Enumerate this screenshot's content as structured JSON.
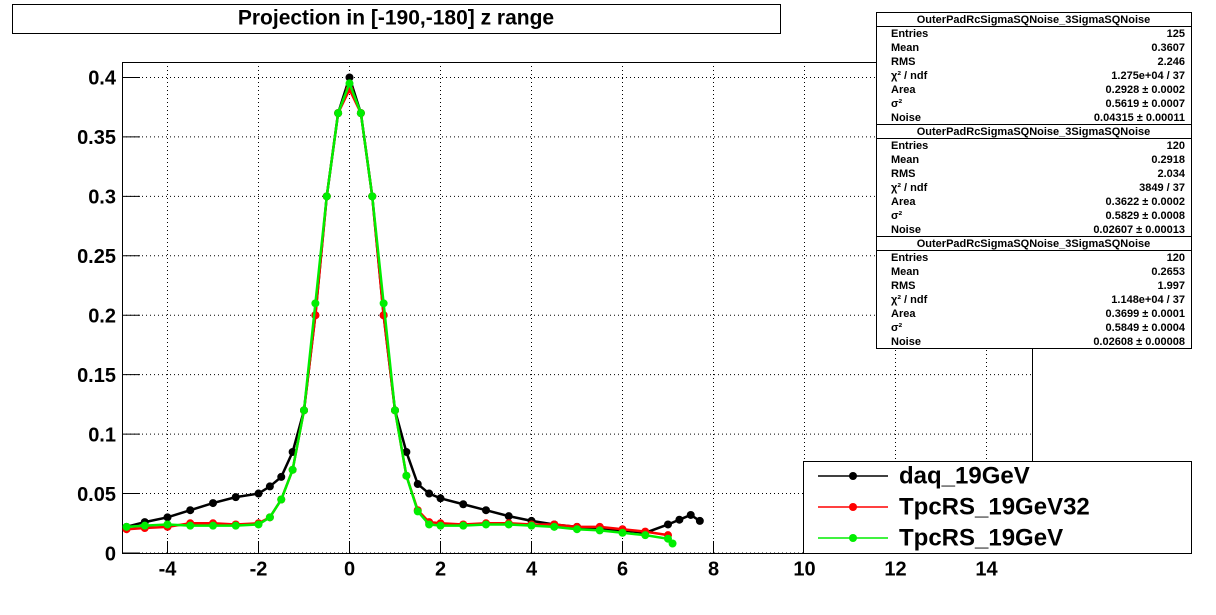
{
  "chart_data": {
    "type": "scatter",
    "title": "Projection in [-190,-180] z range",
    "xlim": [
      -5,
      15
    ],
    "ylim": [
      0,
      0.413
    ],
    "xticks": [
      -4,
      -2,
      0,
      2,
      4,
      6,
      8,
      10,
      12,
      14
    ],
    "yticks": [
      0,
      0.05,
      0.1,
      0.15,
      0.2,
      0.25,
      0.3,
      0.35,
      0.4
    ],
    "grid": true,
    "legend": "bottom-right",
    "series": [
      {
        "name": "daq_19GeV",
        "color": "#000000",
        "x": [
          -4.9,
          -4.5,
          -4,
          -3.5,
          -3,
          -2.5,
          -2,
          -1.75,
          -1.5,
          -1.25,
          -1,
          -0.75,
          -0.5,
          -0.25,
          0,
          0.25,
          0.5,
          0.75,
          1,
          1.25,
          1.5,
          1.75,
          2,
          2.5,
          3,
          3.5,
          4,
          4.5,
          5,
          5.5,
          6,
          6.5,
          7,
          7.25,
          7.5,
          7.7
        ],
        "values": [
          0.022,
          0.026,
          0.03,
          0.036,
          0.042,
          0.047,
          0.05,
          0.056,
          0.064,
          0.085,
          0.12,
          0.2,
          0.3,
          0.37,
          0.4,
          0.37,
          0.3,
          0.2,
          0.12,
          0.085,
          0.058,
          0.05,
          0.046,
          0.041,
          0.036,
          0.031,
          0.027,
          0.024,
          0.022,
          0.02,
          0.019,
          0.017,
          0.024,
          0.028,
          0.032,
          0.027
        ]
      },
      {
        "name": "TpcRS_19GeV32",
        "color": "#ff0000",
        "x": [
          -4.9,
          -4.5,
          -4,
          -3.5,
          -3,
          -2.5,
          -2,
          -1.75,
          -1.5,
          -1.25,
          -1,
          -0.75,
          -0.5,
          -0.25,
          0,
          0.25,
          0.5,
          0.75,
          1,
          1.25,
          1.5,
          1.75,
          2,
          2.5,
          3,
          3.5,
          4,
          4.5,
          5,
          5.5,
          6,
          6.5,
          7
        ],
        "values": [
          0.02,
          0.021,
          0.022,
          0.025,
          0.025,
          0.024,
          0.025,
          0.03,
          0.045,
          0.07,
          0.12,
          0.2,
          0.3,
          0.37,
          0.39,
          0.37,
          0.3,
          0.2,
          0.12,
          0.065,
          0.036,
          0.026,
          0.025,
          0.024,
          0.025,
          0.025,
          0.024,
          0.024,
          0.022,
          0.022,
          0.02,
          0.018,
          0.015
        ]
      },
      {
        "name": "TpcRS_19GeV",
        "color": "#00ee00",
        "x": [
          -4.9,
          -4.5,
          -4,
          -3.5,
          -3,
          -2.5,
          -2,
          -1.75,
          -1.5,
          -1.25,
          -1,
          -0.75,
          -0.5,
          -0.25,
          0,
          0.25,
          0.5,
          0.75,
          1,
          1.25,
          1.5,
          1.75,
          2,
          2.5,
          3,
          3.5,
          4,
          4.5,
          5,
          5.5,
          6,
          6.5,
          7,
          7.1
        ],
        "values": [
          0.022,
          0.023,
          0.024,
          0.023,
          0.023,
          0.023,
          0.024,
          0.03,
          0.045,
          0.07,
          0.12,
          0.21,
          0.3,
          0.37,
          0.395,
          0.37,
          0.3,
          0.21,
          0.12,
          0.065,
          0.035,
          0.024,
          0.023,
          0.023,
          0.024,
          0.024,
          0.023,
          0.022,
          0.02,
          0.019,
          0.017,
          0.015,
          0.012,
          0.008
        ]
      }
    ],
    "stats": [
      {
        "title": "OuterPadRcSigmaSQNoise_3SigmaSQNoise",
        "rows": [
          [
            "Entries",
            "125"
          ],
          [
            "Mean",
            "0.3607"
          ],
          [
            "RMS",
            "2.246"
          ],
          [
            "χ² / ndf",
            "1.275e+04 / 37"
          ],
          [
            "Area",
            "0.2928 ± 0.0002"
          ],
          [
            "σ²",
            "0.5619 ± 0.0007"
          ],
          [
            "Noise",
            "0.04315 ± 0.00011"
          ]
        ]
      },
      {
        "title": "OuterPadRcSigmaSQNoise_3SigmaSQNoise",
        "rows": [
          [
            "Entries",
            "120"
          ],
          [
            "Mean",
            "0.2918"
          ],
          [
            "RMS",
            "2.034"
          ],
          [
            "χ² / ndf",
            "3849 / 37"
          ],
          [
            "Area",
            "0.3622 ± 0.0002"
          ],
          [
            "σ²",
            "0.5829 ± 0.0008"
          ],
          [
            "Noise",
            "0.02607 ± 0.00013"
          ]
        ]
      },
      {
        "title": "OuterPadRcSigmaSQNoise_3SigmaSQNoise",
        "rows": [
          [
            "Entries",
            "120"
          ],
          [
            "Mean",
            "0.2653"
          ],
          [
            "RMS",
            "1.997"
          ],
          [
            "χ² / ndf",
            "1.148e+04 / 37"
          ],
          [
            "Area",
            "0.3699 ± 0.0001"
          ],
          [
            "σ²",
            "0.5849 ± 0.0004"
          ],
          [
            "Noise",
            "0.02608 ± 0.00008"
          ]
        ]
      }
    ]
  }
}
